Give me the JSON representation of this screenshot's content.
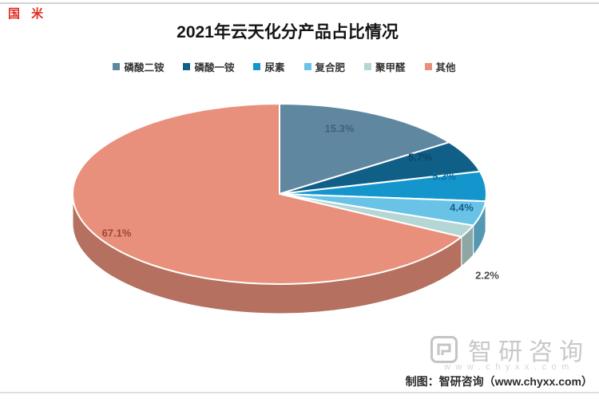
{
  "page": {
    "corner_marks": "国 米",
    "footer_caption": "制图：智研咨询（www.chyxx.com）",
    "watermark": {
      "brand": "智研咨询",
      "url": "www.chyxx.com"
    }
  },
  "chart_data": {
    "type": "pie",
    "style": "3d",
    "title": "2021年云天化分产品占比情况",
    "legend_position": "top",
    "labels": [
      "磷酸二铵",
      "磷酸一铵",
      "尿素",
      "复合肥",
      "聚甲醛",
      "其他"
    ],
    "values": [
      15.3,
      5.7,
      5.3,
      4.4,
      2.2,
      67.1
    ],
    "value_labels": [
      "15.3%",
      "5.7%",
      "5.3%",
      "4.4%",
      "2.2%",
      "67.1%"
    ],
    "colors": [
      "#5f87a0",
      "#105f87",
      "#1496cd",
      "#69c3e6",
      "#b4d6d4",
      "#e8907b"
    ],
    "label_colors": [
      "#3f6277",
      "#0c4668",
      "#0b6fa0",
      "#155e8e",
      "#4a4a4a",
      "#9e4632"
    ]
  }
}
